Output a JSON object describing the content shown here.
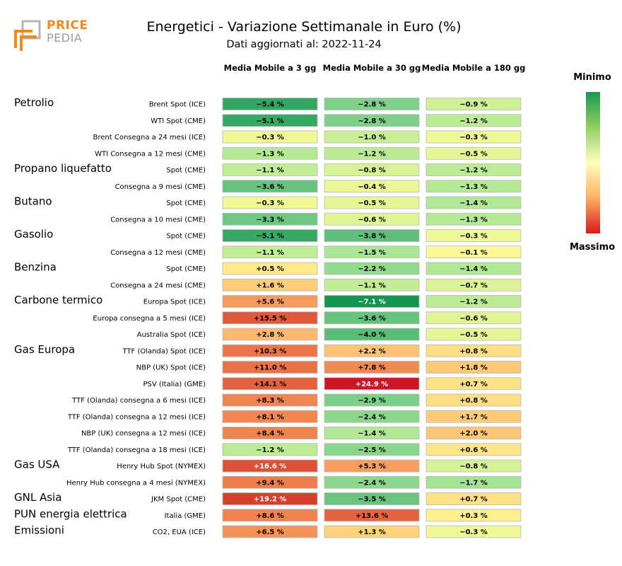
{
  "logo": {
    "word1": "PRICE",
    "word2": "PEDIA"
  },
  "chart_data": {
    "type": "heatmap",
    "title": "Energetici - Variazione Settimanale in Euro (%)",
    "subtitle": "Dati aggiornati al: 2022-11-24",
    "columns": [
      "Media Mobile a 3 gg",
      "Media Mobile a 30 gg",
      "Media Mobile a 180 gg"
    ],
    "legend": {
      "min_label": "Minimo",
      "max_label": "Massimo"
    },
    "value_range": [
      -7.1,
      24.9
    ],
    "rows": [
      {
        "group": "Petrolio",
        "label": "Brent Spot (ICE)",
        "values": [
          -5.4,
          -2.8,
          -0.9
        ]
      },
      {
        "group": "",
        "label": "WTI Spot (CME)",
        "values": [
          -5.1,
          -2.8,
          -1.2
        ]
      },
      {
        "group": "",
        "label": "Brent Consegna a 24 mesi (ICE)",
        "values": [
          -0.3,
          -1.0,
          -0.3
        ]
      },
      {
        "group": "",
        "label": "WTI Consegna a 12 mesi (CME)",
        "values": [
          -1.3,
          -1.2,
          -0.5
        ]
      },
      {
        "group": "Propano liquefatto",
        "label": "Spot (CME)",
        "values": [
          -1.1,
          -0.8,
          -1.2
        ]
      },
      {
        "group": "",
        "label": "Consegna a 9 mesi (CME)",
        "values": [
          -3.6,
          -0.4,
          -1.3
        ]
      },
      {
        "group": "Butano",
        "label": "Spot (CME)",
        "values": [
          -0.3,
          -0.5,
          -1.4
        ]
      },
      {
        "group": "",
        "label": "Consegna a 10 mesi (CME)",
        "values": [
          -3.3,
          -0.6,
          -1.3
        ]
      },
      {
        "group": "Gasolio",
        "label": "Spot (CME)",
        "values": [
          -5.1,
          -3.8,
          -0.3
        ]
      },
      {
        "group": "",
        "label": "Consegna a 12 mesi (CME)",
        "values": [
          -1.1,
          -1.5,
          -0.1
        ]
      },
      {
        "group": "Benzina",
        "label": "Spot (CME)",
        "values": [
          0.5,
          -2.2,
          -1.4
        ]
      },
      {
        "group": "",
        "label": "Consegna a 24 mesi (CME)",
        "values": [
          1.6,
          -1.1,
          -0.7
        ]
      },
      {
        "group": "Carbone termico",
        "label": "Europa Spot (ICE)",
        "values": [
          5.6,
          -7.1,
          -1.2
        ]
      },
      {
        "group": "",
        "label": "Europa consegna a 5 mesi (ICE)",
        "values": [
          15.5,
          -3.6,
          -0.6
        ]
      },
      {
        "group": "",
        "label": "Australia Spot (ICE)",
        "values": [
          2.8,
          -4.0,
          -0.5
        ]
      },
      {
        "group": "Gas Europa",
        "label": "TTF (Olanda) Spot (ICE)",
        "values": [
          10.3,
          2.2,
          0.8
        ]
      },
      {
        "group": "",
        "label": "NBP (UK) Spot (ICE)",
        "values": [
          11.0,
          7.8,
          1.8
        ]
      },
      {
        "group": "",
        "label": "PSV (Italia) (GME)",
        "values": [
          14.1,
          24.9,
          0.7
        ]
      },
      {
        "group": "",
        "label": "TTF (Olanda) consegna a 6 mesi (ICE)",
        "values": [
          8.3,
          -2.9,
          0.8
        ]
      },
      {
        "group": "",
        "label": "TTF (Olanda) consegna a 12 mesi (ICE)",
        "values": [
          8.1,
          -2.4,
          1.7
        ]
      },
      {
        "group": "",
        "label": "NBP (UK) consegna a 12 mesi (ICE)",
        "values": [
          8.4,
          -1.4,
          2.0
        ]
      },
      {
        "group": "",
        "label": "TTF (Olanda) consegna a 18 mesi (ICE)",
        "values": [
          -1.2,
          -2.5,
          0.6
        ]
      },
      {
        "group": "Gas USA",
        "label": "Henry Hub Spot (NYMEX)",
        "values": [
          16.6,
          5.3,
          -0.8
        ]
      },
      {
        "group": "",
        "label": "Henry Hub consegna a 4 mesi (NYMEX)",
        "values": [
          9.4,
          -2.4,
          -1.7
        ]
      },
      {
        "group": "GNL Asia",
        "label": "JKM Spot (CME)",
        "values": [
          19.2,
          -3.5,
          0.7
        ]
      },
      {
        "group": "PUN energia elettrica",
        "label": "Italia (GME)",
        "values": [
          8.6,
          13.6,
          0.3
        ]
      },
      {
        "group": "Emissioni",
        "label": "CO2, EUA (ICE)",
        "values": [
          6.5,
          1.3,
          -0.3
        ]
      }
    ]
  }
}
